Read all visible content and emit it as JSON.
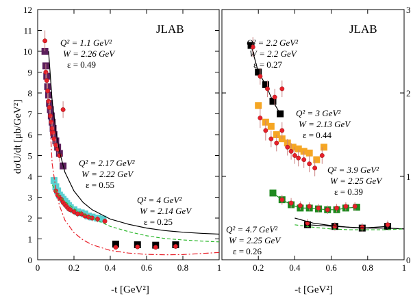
{
  "chart_data": [
    {
      "type": "scatter",
      "panel_label": "JLAB",
      "xlabel": "-t [GeV²]",
      "ylabel": "dσU/dt [μb/GeV²]",
      "xlim": [
        0,
        1
      ],
      "ylim": [
        0,
        12
      ],
      "x_ticks": [
        "0",
        "0.2",
        "0.4",
        "0.6",
        "0.8",
        "1"
      ],
      "y_ticks": [
        "0",
        "1",
        "2",
        "3",
        "4",
        "5",
        "6",
        "7",
        "8",
        "9",
        "10",
        "11",
        "12"
      ],
      "annotations": [
        {
          "q2": "Q² = 1.1 GeV²",
          "w": "W = 2.26 GeV",
          "eps": "ε = 0.49"
        },
        {
          "q2": "Q² = 2.17 GeV²",
          "w": "W = 2.22 GeV",
          "eps": "ε = 0.55"
        },
        {
          "q2": "Q² = 4 GeV²",
          "w": "W = 2.14 GeV",
          "eps": "ε = 0.25"
        }
      ],
      "series": [
        {
          "kind": "model-squares",
          "color": "#5c1f5c",
          "x": [
            0.04,
            0.045,
            0.05,
            0.055,
            0.06,
            0.065,
            0.07,
            0.075,
            0.08,
            0.085,
            0.09,
            0.1,
            0.11,
            0.12,
            0.14
          ],
          "y": [
            10.0,
            9.3,
            8.8,
            8.3,
            7.9,
            7.5,
            7.2,
            6.9,
            6.6,
            6.3,
            6.0,
            5.7,
            5.4,
            5.1,
            4.5
          ]
        },
        {
          "kind": "data",
          "color": "#e8202a",
          "x": [
            0.04,
            0.045,
            0.05,
            0.055,
            0.06,
            0.065,
            0.07,
            0.075,
            0.08,
            0.085,
            0.09,
            0.1,
            0.11,
            0.12,
            0.14
          ],
          "y": [
            10.5,
            9.0,
            8.6,
            8.1,
            7.6,
            7.3,
            6.9,
            6.6,
            6.3,
            6.1,
            5.8,
            5.5,
            5.3,
            5.0,
            7.2
          ],
          "err": [
            0.5,
            0.4,
            0.4,
            0.4,
            0.4,
            0.3,
            0.3,
            0.3,
            0.3,
            0.3,
            0.3,
            0.3,
            0.3,
            0.3,
            0.4
          ]
        },
        {
          "kind": "model-squares",
          "color": "#5ad0d0",
          "x": [
            0.09,
            0.1,
            0.11,
            0.12,
            0.13,
            0.14,
            0.15,
            0.16,
            0.17,
            0.18,
            0.2,
            0.22,
            0.24,
            0.26,
            0.28,
            0.3,
            0.33,
            0.36
          ],
          "y": [
            3.8,
            3.5,
            3.3,
            3.1,
            3.0,
            2.9,
            2.8,
            2.7,
            2.6,
            2.5,
            2.4,
            2.3,
            2.25,
            2.2,
            2.1,
            2.05,
            2.0,
            1.95
          ]
        },
        {
          "kind": "data",
          "color": "#e8202a",
          "x": [
            0.1,
            0.11,
            0.12,
            0.13,
            0.14,
            0.15,
            0.16,
            0.17,
            0.18,
            0.2,
            0.22,
            0.24,
            0.26,
            0.28,
            0.3,
            0.33,
            0.37
          ],
          "y": [
            3.3,
            3.1,
            3.0,
            2.9,
            2.75,
            2.65,
            2.55,
            2.45,
            2.4,
            2.3,
            2.2,
            2.2,
            2.1,
            2.05,
            2.0,
            1.95,
            1.85
          ],
          "err": [
            0.2,
            0.2,
            0.15,
            0.15,
            0.15,
            0.15,
            0.15,
            0.15,
            0.15,
            0.15,
            0.15,
            0.15,
            0.15,
            0.15,
            0.15,
            0.15,
            0.15
          ]
        },
        {
          "kind": "model-squares",
          "color": "#000000",
          "x": [
            0.43,
            0.55,
            0.65,
            0.76
          ],
          "y": [
            0.75,
            0.72,
            0.7,
            0.72
          ]
        },
        {
          "kind": "data",
          "color": "#e8202a",
          "x": [
            0.43,
            0.55,
            0.65,
            0.76
          ],
          "y": [
            0.6,
            0.62,
            0.6,
            0.64
          ],
          "err": [
            0.1,
            0.1,
            0.1,
            0.1
          ]
        },
        {
          "kind": "curve",
          "style": "solid",
          "color": "#000000",
          "x": [
            0.06,
            0.08,
            0.1,
            0.12,
            0.15,
            0.2,
            0.25,
            0.3,
            0.4,
            0.5,
            0.6,
            0.7,
            0.8,
            0.9,
            1.0
          ],
          "y": [
            10.0,
            7.6,
            6.2,
            5.2,
            4.2,
            3.3,
            2.75,
            2.4,
            1.95,
            1.7,
            1.52,
            1.4,
            1.32,
            1.27,
            1.23
          ]
        },
        {
          "kind": "curve",
          "style": "dashed",
          "color": "#2db82d",
          "x": [
            0.08,
            0.1,
            0.12,
            0.15,
            0.2,
            0.25,
            0.3,
            0.4,
            0.5,
            0.6,
            0.7,
            0.8,
            0.9,
            1.0
          ],
          "y": [
            3.6,
            3.3,
            3.05,
            2.8,
            2.45,
            2.2,
            2.0,
            1.6,
            1.35,
            1.15,
            1.02,
            0.95,
            0.9,
            0.86
          ]
        },
        {
          "kind": "curve",
          "style": "dashdot",
          "color": "#e8202a",
          "x": [
            0.07,
            0.08,
            0.1,
            0.12,
            0.15,
            0.2,
            0.25,
            0.3,
            0.4,
            0.5,
            0.6,
            0.7,
            0.8,
            0.9,
            1.0
          ],
          "y": [
            6.2,
            4.6,
            3.4,
            2.6,
            1.9,
            1.3,
            0.95,
            0.72,
            0.45,
            0.32,
            0.26,
            0.24,
            0.25,
            0.3,
            0.35
          ]
        }
      ]
    },
    {
      "type": "scatter",
      "panel_label": "JLAB",
      "xlabel": "-t [GeV²]",
      "xlim": [
        0,
        1
      ],
      "ylim": [
        0,
        3
      ],
      "x_ticks": [
        "0",
        "0.2",
        "0.4",
        "0.6",
        "0.8",
        "1"
      ],
      "y_ticks": [
        "0",
        "1",
        "2",
        "3"
      ],
      "annotations": [
        {
          "q2": "Q² = 2.2 GeV²",
          "w": "W = 2.2 GeV",
          "eps": "ε = 0.27"
        },
        {
          "q2": "Q² = 3 GeV²",
          "w": "W = 2.13 GeV",
          "eps": "ε = 0.44"
        },
        {
          "q2": "Q² = 3.9 GeV²",
          "w": "W = 2.25 GeV",
          "eps": "ε = 0.39"
        },
        {
          "q2": "Q² = 4.7 GeV²",
          "w": "W = 2.25 GeV",
          "eps": "ε = 0.26"
        }
      ],
      "series": [
        {
          "kind": "model-squares-line",
          "color": "#000000",
          "x": [
            0.16,
            0.2,
            0.24,
            0.28,
            0.32
          ],
          "y": [
            2.57,
            2.25,
            2.1,
            1.9,
            1.75
          ]
        },
        {
          "kind": "data",
          "color": "#e8202a",
          "x": [
            0.17,
            0.21,
            0.25,
            0.29,
            0.33
          ],
          "y": [
            2.55,
            2.2,
            2.05,
            1.95,
            2.05
          ],
          "err": [
            0.12,
            0.1,
            0.1,
            0.1,
            0.1
          ]
        },
        {
          "kind": "model-squares",
          "color": "#f5a623",
          "x": [
            0.2,
            0.24,
            0.27,
            0.3,
            0.33,
            0.36,
            0.39,
            0.42,
            0.45,
            0.48,
            0.52,
            0.56
          ],
          "y": [
            1.85,
            1.65,
            1.6,
            1.5,
            1.45,
            1.4,
            1.35,
            1.33,
            1.3,
            1.28,
            1.2,
            1.35
          ]
        },
        {
          "kind": "data",
          "color": "#e8202a",
          "x": [
            0.21,
            0.24,
            0.27,
            0.3,
            0.33,
            0.36,
            0.38,
            0.4,
            0.42,
            0.45,
            0.48,
            0.51,
            0.55
          ],
          "y": [
            1.7,
            1.55,
            1.45,
            1.4,
            1.55,
            1.35,
            1.3,
            1.25,
            1.22,
            1.2,
            1.15,
            1.1,
            1.25
          ],
          "err": [
            0.12,
            0.12,
            0.1,
            0.1,
            0.1,
            0.1,
            0.1,
            0.1,
            0.1,
            0.1,
            0.1,
            0.1,
            0.1
          ]
        },
        {
          "kind": "model-squares-line",
          "color": "#1f8a1f",
          "x": [
            0.28,
            0.33,
            0.38,
            0.43,
            0.48,
            0.53,
            0.58,
            0.63,
            0.68,
            0.74
          ],
          "y": [
            0.8,
            0.72,
            0.66,
            0.62,
            0.62,
            0.61,
            0.6,
            0.6,
            0.62,
            0.63
          ]
        },
        {
          "kind": "data",
          "color": "#e8202a",
          "x": [
            0.33,
            0.38,
            0.43,
            0.48,
            0.53,
            0.58,
            0.63,
            0.68,
            0.73
          ],
          "y": [
            0.72,
            0.68,
            0.65,
            0.64,
            0.62,
            0.6,
            0.62,
            0.64,
            0.64
          ],
          "err": [
            0.06,
            0.06,
            0.05,
            0.05,
            0.05,
            0.05,
            0.05,
            0.05,
            0.05
          ]
        },
        {
          "kind": "model-squares-line",
          "color": "#000000",
          "x": [
            0.47,
            0.62,
            0.77,
            0.91
          ],
          "y": [
            0.42,
            0.4,
            0.38,
            0.4
          ]
        },
        {
          "kind": "data",
          "color": "#e8202a",
          "x": [
            0.47,
            0.62,
            0.77,
            0.91
          ],
          "y": [
            0.44,
            0.4,
            0.39,
            0.42
          ],
          "err": [
            0.05,
            0.05,
            0.05,
            0.05
          ]
        },
        {
          "kind": "curve",
          "style": "solid",
          "color": "#000000",
          "x": [
            0.4,
            0.5,
            0.6,
            0.7,
            0.8,
            0.9,
            1.0
          ],
          "y": [
            0.5,
            0.44,
            0.41,
            0.39,
            0.38,
            0.38,
            0.37
          ]
        },
        {
          "kind": "curve",
          "style": "dashed",
          "color": "#2db82d",
          "x": [
            0.4,
            0.5,
            0.6,
            0.7,
            0.8,
            0.9,
            1.0
          ],
          "y": [
            0.42,
            0.39,
            0.37,
            0.36,
            0.36,
            0.36,
            0.37
          ]
        }
      ]
    }
  ]
}
